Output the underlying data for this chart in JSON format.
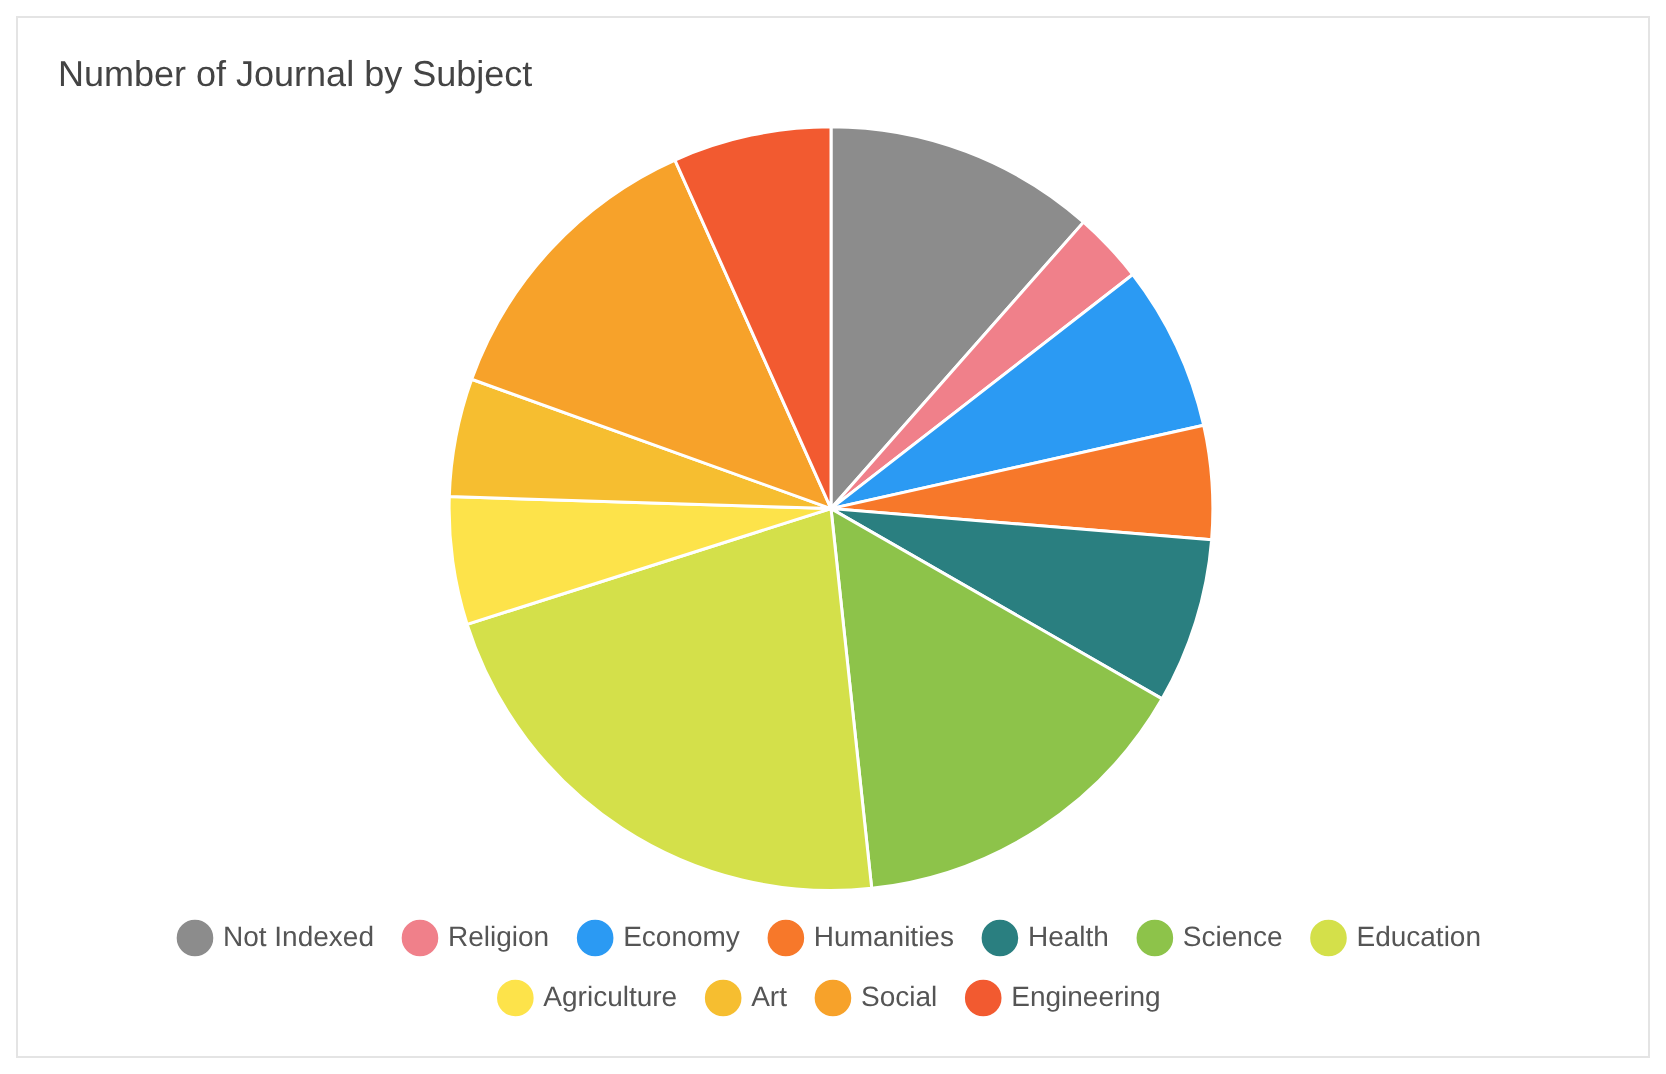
{
  "chart_data": {
    "type": "pie",
    "title": "Number of Journal by Subject",
    "categories": [
      "Not Indexed",
      "Religion",
      "Economy",
      "Humanities",
      "Health",
      "Science",
      "Education",
      "Agriculture",
      "Art",
      "Social",
      "Engineering"
    ],
    "values": [
      11.5,
      3,
      7,
      4.8,
      7,
      15,
      21.8,
      5.4,
      5,
      12.8,
      6.7
    ],
    "colors": [
      "#8c8c8c",
      "#f0808a",
      "#2b9af3",
      "#f7782a",
      "#2a7f80",
      "#8dc34a",
      "#d4e04a",
      "#fde34a",
      "#f6be30",
      "#f7a22a",
      "#f25a30"
    ],
    "legend": "bottom"
  }
}
